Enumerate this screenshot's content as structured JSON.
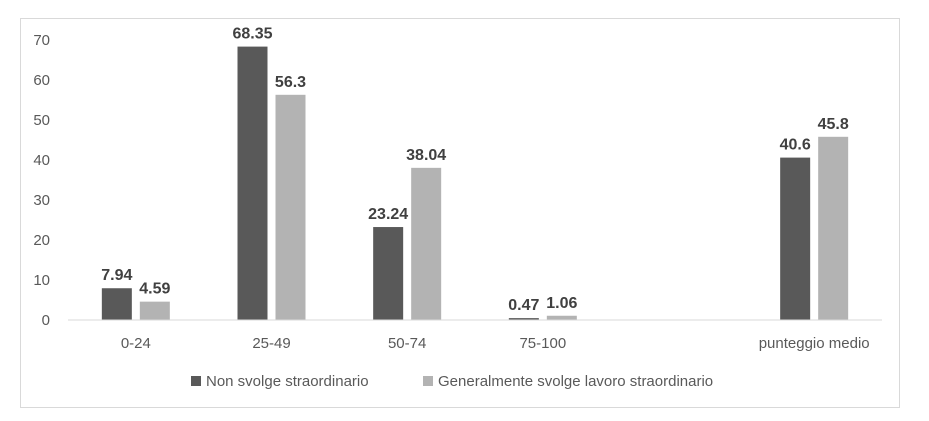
{
  "chart_data": {
    "type": "bar",
    "categories": [
      "0-24",
      "25-49",
      "50-74",
      "75-100",
      "",
      "punteggio medio"
    ],
    "series": [
      {
        "name": "Non svolge straordinario",
        "color": "#595959",
        "values": [
          7.94,
          68.35,
          23.24,
          0.47,
          null,
          40.6
        ],
        "labels": [
          "7.94",
          "68.35",
          "23.24",
          "0.47",
          "",
          "40.6"
        ]
      },
      {
        "name": "Generalmente svolge lavoro straordinario",
        "color": "#b3b3b3",
        "values": [
          4.59,
          56.3,
          38.04,
          1.06,
          null,
          45.8
        ],
        "labels": [
          "4.59",
          "56.3",
          "38.04",
          "1.06",
          "",
          "45.8"
        ]
      }
    ],
    "ylim": [
      0,
      70
    ],
    "yticks": [
      "0",
      "10",
      "20",
      "30",
      "40",
      "50",
      "60",
      "70"
    ],
    "title": "",
    "xlabel": "",
    "ylabel": "",
    "grid": false,
    "legend_position": "bottom"
  }
}
